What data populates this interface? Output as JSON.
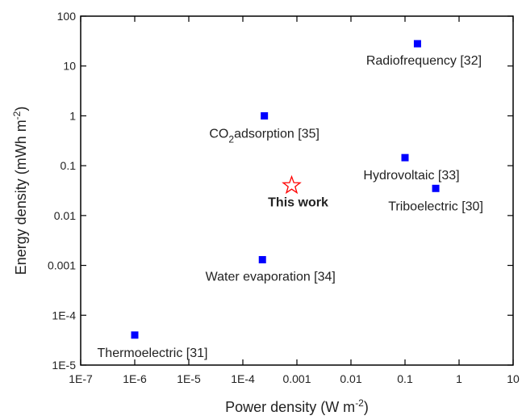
{
  "chart_data": {
    "type": "scatter",
    "x_label": [
      "Power density (W m",
      "-2",
      ")"
    ],
    "y_label": [
      "Energy density (mWh m",
      "-2",
      ")"
    ],
    "log_x": true,
    "log_y": true,
    "xlim": [
      1e-07,
      10
    ],
    "xticks": [
      {
        "value": 1e-07,
        "label": "1E-7"
      },
      {
        "value": 1e-06,
        "label": "1E-6"
      },
      {
        "value": 1e-05,
        "label": "1E-5"
      },
      {
        "value": 0.0001,
        "label": "1E-4"
      },
      0.001,
      0.01,
      0.1,
      1,
      10
    ],
    "ylim": [
      1e-05,
      100
    ],
    "yticks": [
      {
        "value": 1e-05,
        "label": "1E-5"
      },
      {
        "value": 0.0001,
        "label": "1E-4"
      },
      0.001,
      0.01,
      0.1,
      1,
      10,
      100
    ],
    "series": [
      {
        "color": "#0000ff",
        "marker": "square",
        "x": [
          0.17,
          0.00025,
          0.1,
          0.37,
          0.00023,
          1e-06
        ],
        "values": [
          28,
          1,
          0.145,
          0.035,
          0.0013,
          4e-05
        ],
        "labels": [
          "Radiofrequency [32]",
          [
            "CO",
            "2",
            "adsorption [35]"
          ],
          "Hydrovoltaic [33]",
          "Triboelectric [30]",
          "Water evaporation [34]",
          "Thermoelectric [31]"
        ]
      },
      {
        "name": "This work",
        "color": "#ff0000",
        "marker": "star",
        "x": [
          0.0008
        ],
        "values": [
          0.04
        ]
      }
    ]
  }
}
